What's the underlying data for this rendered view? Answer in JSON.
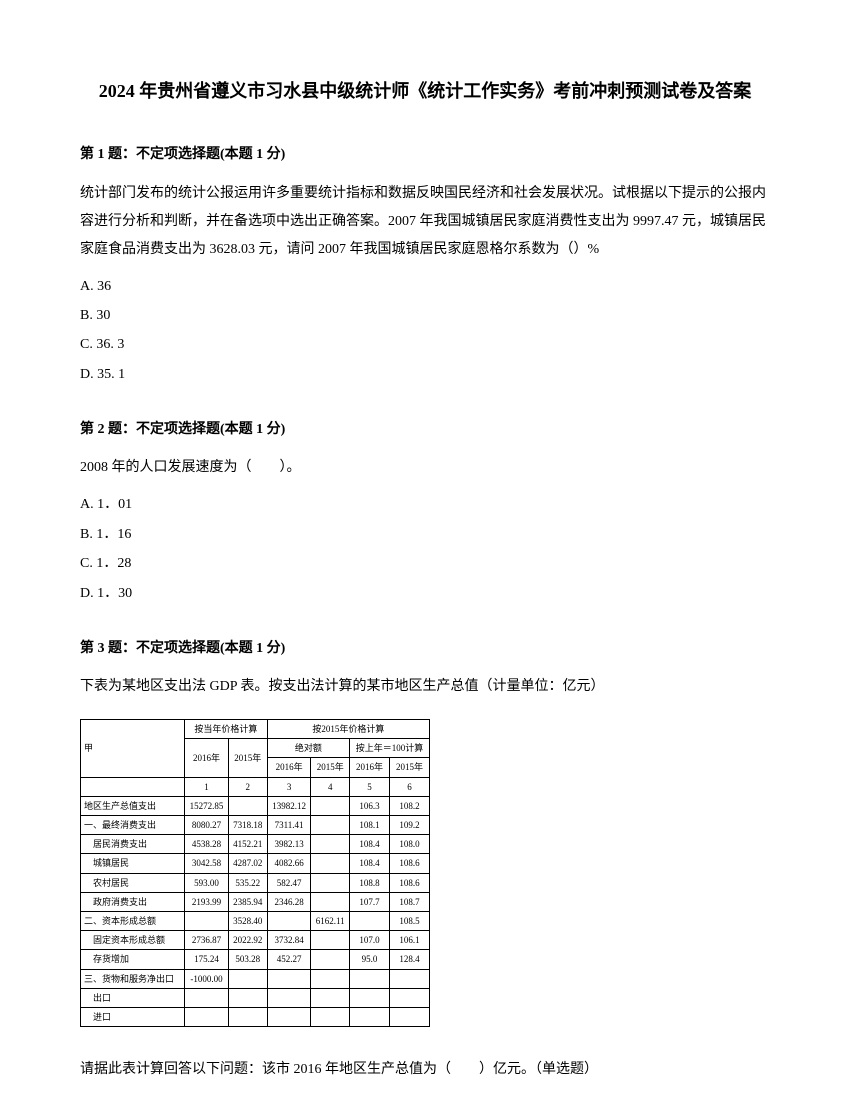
{
  "title": "2024 年贵州省遵义市习水县中级统计师《统计工作实务》考前冲刺预测试卷及答案",
  "q1": {
    "header": "第 1 题：不定项选择题(本题 1 分)",
    "body": "统计部门发布的统计公报运用许多重要统计指标和数据反映国民经济和社会发展状况。试根据以下提示的公报内容进行分析和判断，并在备选项中选出正确答案。2007 年我国城镇居民家庭消费性支出为 9997.47 元，城镇居民家庭食品消费支出为 3628.03 元，请问 2007 年我国城镇居民家庭恩格尔系数为（）%",
    "optA": "A. 36",
    "optB": "B. 30",
    "optC": "C. 36. 3",
    "optD": "D. 35. 1"
  },
  "q2": {
    "header": "第 2 题：不定项选择题(本题 1 分)",
    "body": "2008 年的人口发展速度为（　　）。",
    "optA": "A. 1．01",
    "optB": "B. 1．16",
    "optC": "C. 1．28",
    "optD": "D. 1．30"
  },
  "q3": {
    "header": "第 3 题：不定项选择题(本题 1 分)",
    "body": "下表为某地区支出法 GDP 表。按支出法计算的某市地区生产总值（计量单位：亿元）",
    "footer": "请据此表计算回答以下问题：该市 2016 年地区生产总值为（　　）亿元。（单选题）"
  },
  "table": {
    "group1": "按当年价格计算",
    "group2": "按2015年价格计算",
    "y2016": "2016年",
    "y2015": "2015年",
    "sub1": "绝对额",
    "sub2": "按上年＝100计算",
    "c2016_3": "2016年",
    "c2015_4": "2015年",
    "c2016_5": "2016年",
    "c2015_6": "2015年",
    "col_label": "甲",
    "rows": [
      {
        "label": "地区生产总值支出",
        "c1": "15272.85",
        "c2": "",
        "c3": "13982.12",
        "c4": "",
        "c5": "106.3",
        "c6": "108.2"
      },
      {
        "label": "一、最终消费支出",
        "c1": "8080.27",
        "c2": "7318.18",
        "c3": "7311.41",
        "c4": "",
        "c5": "108.1",
        "c6": "109.2"
      },
      {
        "label": "　居民消费支出",
        "c1": "4538.28",
        "c2": "4152.21",
        "c3": "3982.13",
        "c4": "",
        "c5": "108.4",
        "c6": "108.0"
      },
      {
        "label": "　城镇居民",
        "c1": "3042.58",
        "c2": "4287.02",
        "c3": "4082.66",
        "c4": "",
        "c5": "108.4",
        "c6": "108.6"
      },
      {
        "label": "　农村居民",
        "c1": "593.00",
        "c2": "535.22",
        "c3": "582.47",
        "c4": "",
        "c5": "108.8",
        "c6": "108.6"
      },
      {
        "label": "　政府消费支出",
        "c1": "2193.99",
        "c2": "2385.94",
        "c3": "2346.28",
        "c4": "",
        "c5": "107.7",
        "c6": "108.7"
      },
      {
        "label": "二、资本形成总额",
        "c1": "",
        "c2": "3528.40",
        "c3": "",
        "c4": "6162.11",
        "c5": "",
        "c6": "108.5"
      },
      {
        "label": "　固定资本形成总额",
        "c1": "2736.87",
        "c2": "2022.92",
        "c3": "3732.84",
        "c4": "",
        "c5": "107.0",
        "c6": "106.1"
      },
      {
        "label": "　存货增加",
        "c1": "175.24",
        "c2": "503.28",
        "c3": "452.27",
        "c4": "",
        "c5": "95.0",
        "c6": "128.4"
      },
      {
        "label": "三、货物和服务净出口",
        "c1": "-1000.00",
        "c2": "",
        "c3": "",
        "c4": "",
        "c5": "",
        "c6": ""
      },
      {
        "label": "　出口",
        "c1": "",
        "c2": "",
        "c3": "",
        "c4": "",
        "c5": "",
        "c6": ""
      },
      {
        "label": "　进口",
        "c1": "",
        "c2": "",
        "c3": "",
        "c4": "",
        "c5": "",
        "c6": ""
      }
    ]
  }
}
